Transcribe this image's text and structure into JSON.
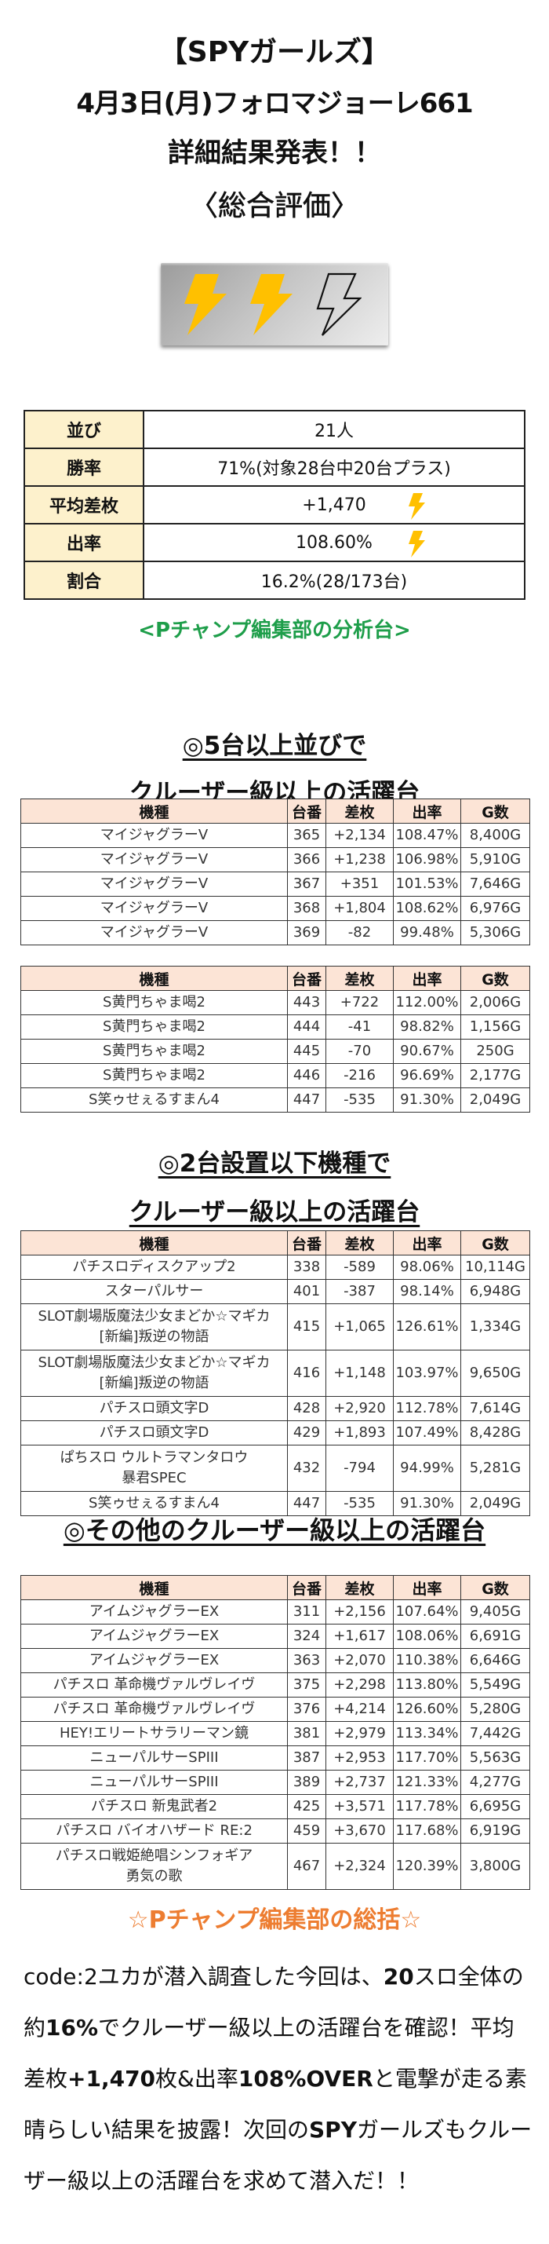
{
  "header": {
    "title": "【SPYガールズ】",
    "subtitle": "4月3日(月)フォロマジョーレ661",
    "announce": "詳細結果発表！！",
    "rating_heading": "〈総合評価〉"
  },
  "rating": {
    "filled_bolts": 2,
    "total_bolts": 3,
    "bolt_color": "#ffc000"
  },
  "summary": {
    "rows": [
      {
        "label": "並び",
        "value": "21人",
        "bolt": false
      },
      {
        "label": "勝率",
        "value": "71%(対象28台中20台プラス)",
        "bolt": false
      },
      {
        "label": "平均差枚",
        "value": "+1,470",
        "bolt": true
      },
      {
        "label": "出率",
        "value": "108.60%",
        "bolt": true
      },
      {
        "label": "割合",
        "value": "16.2%(28/173台)",
        "bolt": false
      }
    ]
  },
  "analysis_heading": "<Pチャンプ編集部の分析台>",
  "columns": [
    "機種",
    "台番",
    "差枚",
    "出率",
    "G数"
  ],
  "section1": {
    "line1": "◎5台以上並びで",
    "line2": "クルーザー級以上の活躍台",
    "table_a": [
      [
        "マイジャグラーV",
        "365",
        "+2,134",
        "108.47%",
        "8,400G"
      ],
      [
        "マイジャグラーV",
        "366",
        "+1,238",
        "106.98%",
        "5,910G"
      ],
      [
        "マイジャグラーV",
        "367",
        "+351",
        "101.53%",
        "7,646G"
      ],
      [
        "マイジャグラーV",
        "368",
        "+1,804",
        "108.62%",
        "6,976G"
      ],
      [
        "マイジャグラーV",
        "369",
        "-82",
        "99.48%",
        "5,306G"
      ]
    ],
    "table_b": [
      [
        "S黄門ちゃま喝2",
        "443",
        "+722",
        "112.00%",
        "2,006G"
      ],
      [
        "S黄門ちゃま喝2",
        "444",
        "-41",
        "98.82%",
        "1,156G"
      ],
      [
        "S黄門ちゃま喝2",
        "445",
        "-70",
        "90.67%",
        "250G"
      ],
      [
        "S黄門ちゃま喝2",
        "446",
        "-216",
        "96.69%",
        "2,177G"
      ],
      [
        "S笑ゥせぇるすまん4",
        "447",
        "-535",
        "91.30%",
        "2,049G"
      ]
    ]
  },
  "section2": {
    "line1": "◎2台設置以下機種で",
    "line2": "クルーザー級以上の活躍台",
    "rows": [
      [
        "パチスロディスクアップ2",
        "338",
        "-589",
        "98.06%",
        "10,114G"
      ],
      [
        "スターパルサー",
        "401",
        "-387",
        "98.14%",
        "6,948G"
      ],
      [
        "SLOT劇場版魔法少女まどか☆マギカ",
        "[新編]叛逆の物語",
        "415",
        "+1,065",
        "126.61%",
        "1,334G"
      ],
      [
        "SLOT劇場版魔法少女まどか☆マギカ",
        "[新編]叛逆の物語",
        "416",
        "+1,148",
        "103.97%",
        "9,650G"
      ],
      [
        "パチスロ頭文字D",
        "428",
        "+2,920",
        "112.78%",
        "7,614G"
      ],
      [
        "パチスロ頭文字D",
        "429",
        "+1,893",
        "107.49%",
        "8,428G"
      ],
      [
        "ぱちスロ ウルトラマンタロウ",
        "暴君SPEC",
        "432",
        "-794",
        "94.99%",
        "5,281G"
      ],
      [
        "S笑ゥせぇるすまん4",
        "447",
        "-535",
        "91.30%",
        "2,049G"
      ]
    ]
  },
  "section3": {
    "line1": "◎その他のクルーザー級以上の活躍台",
    "rows": [
      [
        "アイムジャグラーEX",
        "311",
        "+2,156",
        "107.64%",
        "9,405G"
      ],
      [
        "アイムジャグラーEX",
        "324",
        "+1,617",
        "108.06%",
        "6,691G"
      ],
      [
        "アイムジャグラーEX",
        "363",
        "+2,070",
        "110.38%",
        "6,646G"
      ],
      [
        "パチスロ 革命機ヴァルヴレイヴ",
        "375",
        "+2,298",
        "113.80%",
        "5,549G"
      ],
      [
        "パチスロ 革命機ヴァルヴレイヴ",
        "376",
        "+4,214",
        "126.60%",
        "5,280G"
      ],
      [
        "HEY!エリートサラリーマン鏡",
        "381",
        "+2,979",
        "113.34%",
        "7,442G"
      ],
      [
        "ニューパルサーSPIII",
        "387",
        "+2,953",
        "117.70%",
        "5,563G"
      ],
      [
        "ニューパルサーSPIII",
        "389",
        "+2,737",
        "121.33%",
        "4,277G"
      ],
      [
        "パチスロ 新鬼武者2",
        "425",
        "+3,571",
        "117.78%",
        "6,695G"
      ],
      [
        "パチスロ バイオハザード RE:2",
        "459",
        "+3,670",
        "117.68%",
        "6,919G"
      ],
      [
        "パチスロ戦姫絶唱シンフォギア",
        "勇気の歌",
        "467",
        "+2,324",
        "120.39%",
        "3,800G"
      ]
    ]
  },
  "summary_section": {
    "heading": "☆Pチャンプ編集部の総括☆",
    "paragraph": [
      {
        "t": "code:2",
        "b": false
      },
      {
        "t": "ユカが潜入調査した今回は、",
        "b": false
      },
      {
        "t": "20",
        "b": true
      },
      {
        "t": "スロ全体の約",
        "b": false
      },
      {
        "t": "16%",
        "b": true
      },
      {
        "t": "でクルーザー級以上の活躍台を確認！平均差枚",
        "b": false
      },
      {
        "t": "+1,470",
        "b": true
      },
      {
        "t": "枚&出率",
        "b": false
      },
      {
        "t": "108%OVER",
        "b": true
      },
      {
        "t": "と電撃が走る素晴らしい結果を披露！次回の",
        "b": false
      },
      {
        "t": "SPY",
        "b": true
      },
      {
        "t": "ガールズもクルーザー級以上の活躍台を求めて潜入だ！！",
        "b": false
      }
    ]
  }
}
